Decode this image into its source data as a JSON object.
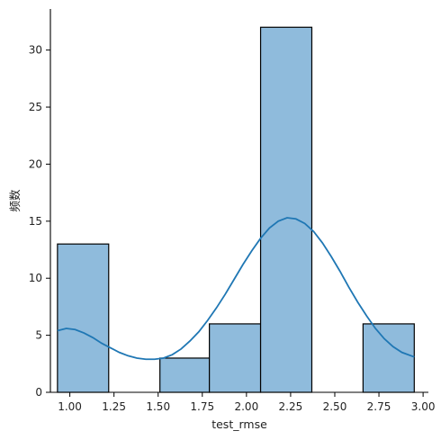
{
  "chart_data": {
    "type": "bar",
    "subtype": "histogram-with-kde",
    "title": "",
    "xlabel": "test_rmse",
    "ylabel": "频数",
    "xlim": [
      0.89,
      3.03
    ],
    "ylim": [
      0,
      33.6
    ],
    "xticks": [
      "1.00",
      "1.25",
      "1.50",
      "1.75",
      "2.00",
      "2.25",
      "2.50",
      "2.75",
      "3.00"
    ],
    "yticks": [
      "0",
      "5",
      "10",
      "15",
      "20",
      "25",
      "30"
    ],
    "grid": false,
    "bins": [
      {
        "x0": 0.93,
        "x1": 1.22,
        "count": 13
      },
      {
        "x0": 1.22,
        "x1": 1.51,
        "count": 0
      },
      {
        "x0": 1.51,
        "x1": 1.79,
        "count": 3
      },
      {
        "x0": 1.79,
        "x1": 2.08,
        "count": 6
      },
      {
        "x0": 2.08,
        "x1": 2.37,
        "count": 32
      },
      {
        "x0": 2.37,
        "x1": 2.66,
        "count": 0
      },
      {
        "x0": 2.66,
        "x1": 2.95,
        "count": 6
      }
    ],
    "kde": {
      "x": [
        0.93,
        0.98,
        1.03,
        1.08,
        1.13,
        1.18,
        1.23,
        1.28,
        1.33,
        1.38,
        1.43,
        1.48,
        1.53,
        1.58,
        1.63,
        1.68,
        1.73,
        1.78,
        1.83,
        1.88,
        1.93,
        1.98,
        2.03,
        2.08,
        2.13,
        2.18,
        2.23,
        2.28,
        2.33,
        2.38,
        2.43,
        2.48,
        2.53,
        2.58,
        2.63,
        2.68,
        2.73,
        2.78,
        2.83,
        2.88,
        2.95
      ],
      "y": [
        5.4,
        5.6,
        5.5,
        5.2,
        4.8,
        4.3,
        3.9,
        3.5,
        3.2,
        3.0,
        2.9,
        2.9,
        3.0,
        3.3,
        3.8,
        4.5,
        5.3,
        6.3,
        7.4,
        8.6,
        9.9,
        11.2,
        12.4,
        13.5,
        14.4,
        15.0,
        15.3,
        15.2,
        14.8,
        14.1,
        13.1,
        11.9,
        10.6,
        9.2,
        7.9,
        6.7,
        5.6,
        4.7,
        4.0,
        3.5,
        3.1
      ]
    },
    "colors": {
      "bar_fill": "#8fbbdc",
      "bar_edge": "#000000",
      "kde_line": "#1f77b4"
    }
  }
}
